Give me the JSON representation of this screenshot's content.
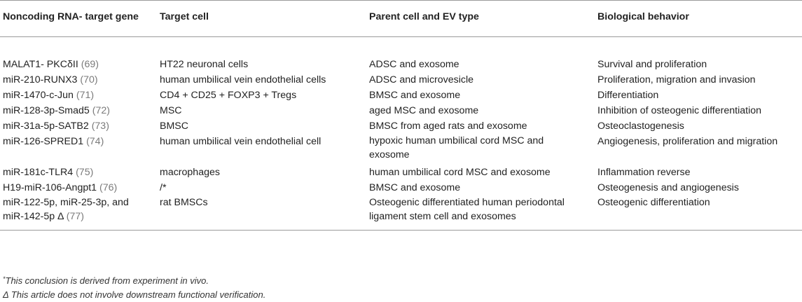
{
  "headers": [
    "Noncoding RNA- target gene",
    "Target cell",
    "Parent cell and EV type",
    "Biological behavior"
  ],
  "rows": [
    {
      "gene": "MALAT1- PKCδII",
      "ref": "(69)",
      "cell": "HT22 neuronal cells",
      "parent": "ADSC and exosome",
      "behavior": "Survival and proliferation"
    },
    {
      "gene": "miR-210-RUNX3",
      "ref": "(70)",
      "cell": "human umbilical vein endothelial cells",
      "parent": "ADSC and microvesicle",
      "behavior": "Proliferation, migration and invasion"
    },
    {
      "gene": "miR-1470-c-Jun",
      "ref": "(71)",
      "cell": "CD4 + CD25 + FOXP3 + Tregs",
      "parent": "BMSC and exosome",
      "behavior": "Differentiation"
    },
    {
      "gene": "miR-128-3p-Smad5",
      "ref": "(72)",
      "cell": "MSC",
      "parent": "aged MSC and exosome",
      "behavior": "Inhibition of osteogenic differentiation"
    },
    {
      "gene": "miR-31a-5p-SATB2",
      "ref": "(73)",
      "cell": "BMSC",
      "parent": "BMSC from aged rats and exosome",
      "behavior": "Osteoclastogenesis"
    },
    {
      "gene": "miR-126-SPRED1",
      "ref": "(74)",
      "cell": "human umbilical vein endothelial cell",
      "parent": "hypoxic human umbilical cord MSC and exosome",
      "behavior": "Angiogenesis, proliferation and migration"
    },
    {
      "gene": "miR-181c-TLR4",
      "ref": "(75)",
      "cell": "macrophages",
      "parent": "human umbilical cord MSC and exosome",
      "behavior": "Inflammation reverse"
    },
    {
      "gene": "H19-miR-106-Angpt1",
      "ref": "(76)",
      "cell": "/*",
      "parent": "BMSC and exosome",
      "behavior": "Osteogenesis and angiogenesis"
    },
    {
      "gene": "miR-122-5p, miR-25-3p, and miR-142-5p Δ",
      "ref": "(77)",
      "cell": "rat BMSCs",
      "parent": "Osteogenic differentiated human periodontal ligament stem cell and exosomes",
      "behavior": "Osteogenic differentiation"
    }
  ],
  "footnotes": {
    "note1_mark": "*",
    "note1_text": "This conclusion is derived from experiment in vivo.",
    "note2_text": "Δ This article does not involve downstream functional verification."
  }
}
